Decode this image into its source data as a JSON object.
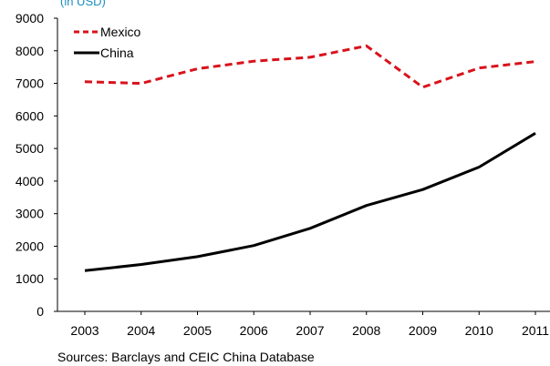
{
  "chart_data": {
    "type": "line",
    "unit_label": "(in USD)",
    "x": [
      "2003",
      "2004",
      "2005",
      "2006",
      "2007",
      "2008",
      "2009",
      "2010",
      "2011"
    ],
    "ylim": [
      0,
      9000
    ],
    "yticks": [
      "0",
      "1000",
      "2000",
      "3000",
      "4000",
      "5000",
      "6000",
      "7000",
      "8000",
      "9000"
    ],
    "grid": false,
    "legend_position": "top-left",
    "series": [
      {
        "name": "Mexico",
        "color": "#d9121b",
        "dash": "dashed",
        "values": [
          7050,
          7000,
          7450,
          7680,
          7800,
          8150,
          6880,
          7470,
          7670
        ]
      },
      {
        "name": "China",
        "color": "#000000",
        "dash": "solid",
        "values": [
          1250,
          1440,
          1680,
          2020,
          2550,
          3250,
          3740,
          4430,
          5470
        ]
      }
    ]
  },
  "footer": {
    "source": "Sources: Barclays and CEIC China Database"
  }
}
